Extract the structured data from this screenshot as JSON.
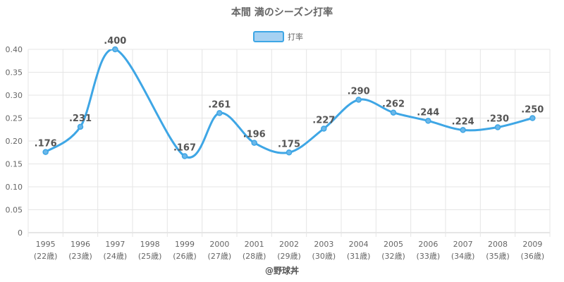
{
  "title": "本間 満のシーズン打率",
  "credit": "@野球丼",
  "colors": {
    "line": "#3ea6e5",
    "legend_fill": "#a6d1f2"
  },
  "chart_data": {
    "type": "line",
    "title": "本間 満のシーズン打率",
    "categories": [
      "1995",
      "1996",
      "1997",
      "1998",
      "1999",
      "2000",
      "2001",
      "2002",
      "2003",
      "2004",
      "2005",
      "2006",
      "2007",
      "2008",
      "2009"
    ],
    "ages": [
      "(22歳)",
      "(23歳)",
      "(24歳)",
      "(25歳)",
      "(26歳)",
      "(27歳)",
      "(28歳)",
      "(29歳)",
      "(30歳)",
      "(31歳)",
      "(32歳)",
      "(33歳)",
      "(34歳)",
      "(35歳)",
      "(36歳)"
    ],
    "series": [
      {
        "name": "打率",
        "values": [
          0.176,
          0.231,
          0.4,
          null,
          0.167,
          0.261,
          0.196,
          0.175,
          0.227,
          0.29,
          0.262,
          0.244,
          0.224,
          0.23,
          0.25
        ],
        "labels": [
          ".176",
          ".231",
          ".400",
          null,
          ".167",
          ".261",
          ".196",
          ".175",
          ".227",
          ".290",
          ".262",
          ".244",
          ".224",
          ".230",
          ".250"
        ]
      }
    ],
    "yticks": [
      "0",
      "0.05",
      "0.10",
      "0.15",
      "0.20",
      "0.25",
      "0.30",
      "0.35",
      "0.40"
    ],
    "ylim": [
      0,
      0.4
    ],
    "grid": true,
    "legend": "top-center"
  }
}
